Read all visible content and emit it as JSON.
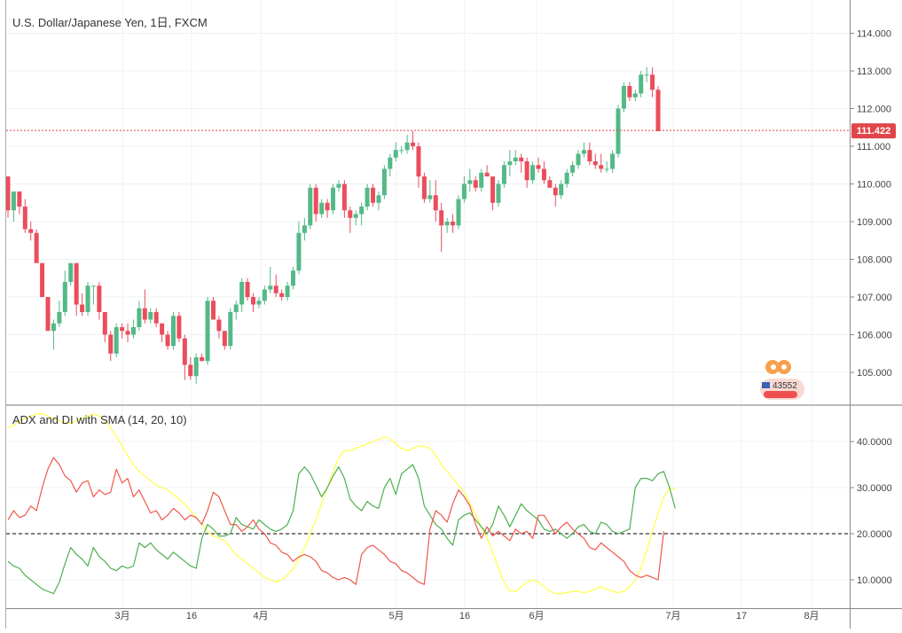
{
  "main_chart": {
    "title": "U.S. Dollar/Japanese Yen, 1日, FXCM",
    "y_ticks": [
      "114.000",
      "113.000",
      "112.000",
      "111.000",
      "110.000",
      "109.000",
      "108.000",
      "107.000",
      "106.000",
      "105.000"
    ],
    "current_price": "111.422",
    "badge_text": "43552",
    "colors": {
      "up": "#53b987",
      "down": "#eb4d5c",
      "price_line": "#e0454a",
      "badge_bg": "#ef4f4f"
    }
  },
  "indicator": {
    "title": "ADX and DI with SMA (14, 20, 10)",
    "y_ticks": [
      "40.0000",
      "30.0000",
      "20.0000",
      "10.0000"
    ],
    "threshold": 20,
    "colors": {
      "adx_sma": "#ffff44",
      "di_plus": "#4caf50",
      "di_minus": "#f0594a",
      "threshold": "#000000"
    }
  },
  "x_ticks": [
    "3月",
    "16",
    "4月",
    "5月",
    "16",
    "6月",
    "7月",
    "17",
    "8月"
  ],
  "chart_data": [
    {
      "type": "candlestick",
      "title": "U.S. Dollar/Japanese Yen, 1日, FXCM",
      "ylim": [
        104.4,
        114.6
      ],
      "candles": [
        [
          110.2,
          110.2,
          109.1,
          109.3
        ],
        [
          109.3,
          109.8,
          109.0,
          109.8
        ],
        [
          109.8,
          109.8,
          109.2,
          109.4
        ],
        [
          109.4,
          109.6,
          108.7,
          108.8
        ],
        [
          108.8,
          109.0,
          108.5,
          108.7
        ],
        [
          108.7,
          108.8,
          107.9,
          107.9
        ],
        [
          107.9,
          107.9,
          107.0,
          107.0
        ],
        [
          107.0,
          107.0,
          106.1,
          106.1
        ],
        [
          106.1,
          106.4,
          105.6,
          106.3
        ],
        [
          106.3,
          106.9,
          106.2,
          106.6
        ],
        [
          106.6,
          107.7,
          106.5,
          107.4
        ],
        [
          107.4,
          107.9,
          107.3,
          107.9
        ],
        [
          107.9,
          107.9,
          106.5,
          106.8
        ],
        [
          106.8,
          107.1,
          106.5,
          106.6
        ],
        [
          106.6,
          107.4,
          106.5,
          107.3
        ],
        [
          107.3,
          107.3,
          106.8,
          107.3
        ],
        [
          107.3,
          107.4,
          106.4,
          106.6
        ],
        [
          106.6,
          106.6,
          105.8,
          106.0
        ],
        [
          106.0,
          106.1,
          105.3,
          105.5
        ],
        [
          105.5,
          106.3,
          105.4,
          106.2
        ],
        [
          106.2,
          106.3,
          105.9,
          106.1
        ],
        [
          106.1,
          106.3,
          105.8,
          106.0
        ],
        [
          106.0,
          106.4,
          105.9,
          106.2
        ],
        [
          106.2,
          106.9,
          106.1,
          106.7
        ],
        [
          106.7,
          107.2,
          106.3,
          106.4
        ],
        [
          106.4,
          106.7,
          106.3,
          106.6
        ],
        [
          106.6,
          106.7,
          106.2,
          106.3
        ],
        [
          106.3,
          106.3,
          105.8,
          106.0
        ],
        [
          106.0,
          106.1,
          105.6,
          105.7
        ],
        [
          105.7,
          106.6,
          105.6,
          106.5
        ],
        [
          106.5,
          106.6,
          105.8,
          105.9
        ],
        [
          105.9,
          106.0,
          104.8,
          105.2
        ],
        [
          105.2,
          105.4,
          104.8,
          104.9
        ],
        [
          104.9,
          105.5,
          104.7,
          105.4
        ],
        [
          105.4,
          105.5,
          105.3,
          105.3
        ],
        [
          105.3,
          107.0,
          105.2,
          106.9
        ],
        [
          106.9,
          107.0,
          106.4,
          106.4
        ],
        [
          106.4,
          106.5,
          105.9,
          106.1
        ],
        [
          106.1,
          106.1,
          105.6,
          105.7
        ],
        [
          105.7,
          106.7,
          105.6,
          106.6
        ],
        [
          106.6,
          106.9,
          106.4,
          106.8
        ],
        [
          106.8,
          107.5,
          106.6,
          107.4
        ],
        [
          107.4,
          107.5,
          106.9,
          107.0
        ],
        [
          107.0,
          107.1,
          106.6,
          106.8
        ],
        [
          106.8,
          107.0,
          106.7,
          106.9
        ],
        [
          106.9,
          107.3,
          106.8,
          107.2
        ],
        [
          107.2,
          107.8,
          107.1,
          107.3
        ],
        [
          107.3,
          107.6,
          107.0,
          107.1
        ],
        [
          107.1,
          107.2,
          106.9,
          107.0
        ],
        [
          107.0,
          107.4,
          106.9,
          107.3
        ],
        [
          107.3,
          107.8,
          107.2,
          107.7
        ],
        [
          107.7,
          109.0,
          107.6,
          108.7
        ],
        [
          108.7,
          109.1,
          108.5,
          108.9
        ],
        [
          108.9,
          110.0,
          108.8,
          109.9
        ],
        [
          109.9,
          110.0,
          109.0,
          109.2
        ],
        [
          109.2,
          109.6,
          109.1,
          109.5
        ],
        [
          109.5,
          109.6,
          109.1,
          109.3
        ],
        [
          109.3,
          110.0,
          109.2,
          109.9
        ],
        [
          109.9,
          110.1,
          109.8,
          110.0
        ],
        [
          110.0,
          110.1,
          109.1,
          109.3
        ],
        [
          109.3,
          109.4,
          108.7,
          109.1
        ],
        [
          109.1,
          109.3,
          108.9,
          109.2
        ],
        [
          109.2,
          109.5,
          108.9,
          109.4
        ],
        [
          109.4,
          110.0,
          109.3,
          109.9
        ],
        [
          109.9,
          110.0,
          109.4,
          109.5
        ],
        [
          109.5,
          109.8,
          109.3,
          109.7
        ],
        [
          109.7,
          110.5,
          109.6,
          110.4
        ],
        [
          110.4,
          110.8,
          110.2,
          110.7
        ],
        [
          110.7,
          111.1,
          110.6,
          110.9
        ],
        [
          110.9,
          111.0,
          110.8,
          110.9
        ],
        [
          110.9,
          111.3,
          110.8,
          111.1
        ],
        [
          111.1,
          111.4,
          110.9,
          111.0
        ],
        [
          111.0,
          111.1,
          109.9,
          110.2
        ],
        [
          110.2,
          110.3,
          109.5,
          109.6
        ],
        [
          109.6,
          110.1,
          109.5,
          109.7
        ],
        [
          109.7,
          110.1,
          109.0,
          109.3
        ],
        [
          109.3,
          109.5,
          108.2,
          108.9
        ],
        [
          108.9,
          109.1,
          108.7,
          109.0
        ],
        [
          109.0,
          109.2,
          108.7,
          108.9
        ],
        [
          108.9,
          109.7,
          108.8,
          109.6
        ],
        [
          109.6,
          110.2,
          109.5,
          110.0
        ],
        [
          110.0,
          110.4,
          109.8,
          110.1
        ],
        [
          110.1,
          110.2,
          109.8,
          109.9
        ],
        [
          109.9,
          110.4,
          109.8,
          110.3
        ],
        [
          110.3,
          110.5,
          110.2,
          110.2
        ],
        [
          110.2,
          110.2,
          109.3,
          109.5
        ],
        [
          109.5,
          110.1,
          109.4,
          110.0
        ],
        [
          110.0,
          110.6,
          109.9,
          110.5
        ],
        [
          110.5,
          110.9,
          110.2,
          110.6
        ],
        [
          110.6,
          110.9,
          110.5,
          110.7
        ],
        [
          110.7,
          110.8,
          110.3,
          110.6
        ],
        [
          110.6,
          110.7,
          109.9,
          110.1
        ],
        [
          110.1,
          110.6,
          110.0,
          110.5
        ],
        [
          110.5,
          110.7,
          110.3,
          110.4
        ],
        [
          110.4,
          110.6,
          110.0,
          110.1
        ],
        [
          110.1,
          110.2,
          109.9,
          109.9
        ],
        [
          109.9,
          110.0,
          109.4,
          109.7
        ],
        [
          109.7,
          110.1,
          109.6,
          110.0
        ],
        [
          110.0,
          110.4,
          109.9,
          110.3
        ],
        [
          110.3,
          110.6,
          110.2,
          110.5
        ],
        [
          110.5,
          110.9,
          110.4,
          110.8
        ],
        [
          110.8,
          111.1,
          110.7,
          110.9
        ],
        [
          110.9,
          111.1,
          110.5,
          110.6
        ],
        [
          110.6,
          110.8,
          110.4,
          110.5
        ],
        [
          110.5,
          110.8,
          110.3,
          110.4
        ],
        [
          110.4,
          110.6,
          110.3,
          110.4
        ],
        [
          110.4,
          110.9,
          110.3,
          110.8
        ],
        [
          110.8,
          112.1,
          110.7,
          112.0
        ],
        [
          112.0,
          112.7,
          111.9,
          112.6
        ],
        [
          112.6,
          112.7,
          112.2,
          112.3
        ],
        [
          112.3,
          112.5,
          112.2,
          112.4
        ],
        [
          112.4,
          113.0,
          112.3,
          112.9
        ],
        [
          112.9,
          113.1,
          112.7,
          112.9
        ],
        [
          112.9,
          113.1,
          112.3,
          112.5
        ],
        [
          112.5,
          112.6,
          111.4,
          111.4
        ]
      ]
    },
    {
      "type": "line",
      "title": "ADX and DI with SMA (14, 20, 10)",
      "ylim": [
        3.0,
        47.0
      ],
      "series": [
        {
          "values": [
            43.0,
            43.5,
            44.5,
            45.0,
            45.5,
            46.0,
            46.0,
            45.5,
            45.0,
            44.5,
            44.0,
            44.0,
            44.5,
            45.0,
            45.5,
            46.0,
            45.5,
            44.5,
            43.0,
            41.0,
            39.0,
            37.0,
            35.0,
            33.5,
            32.5,
            31.5,
            30.5,
            30.0,
            29.5,
            28.5,
            27.5,
            26.5,
            25.0,
            23.5,
            22.0,
            20.5,
            19.5,
            19.0,
            18.5,
            17.0,
            15.5,
            14.5,
            13.5,
            12.5,
            11.5,
            10.5,
            10.0,
            9.5,
            10.0,
            11.0,
            12.5,
            14.5,
            17.0,
            20.0,
            23.0,
            26.5,
            30.0,
            33.5,
            36.5,
            38.0,
            38.0,
            38.5,
            39.0,
            39.5,
            40.0,
            40.5,
            41.0,
            40.5,
            39.5,
            38.5,
            38.0,
            38.5,
            39.0,
            39.0,
            38.5,
            37.0,
            35.0,
            33.5,
            32.0,
            30.5,
            29.0,
            26.5,
            24.0,
            21.5,
            19.0,
            16.0,
            12.5,
            9.5,
            7.5,
            7.5,
            8.5,
            9.5,
            10.0,
            9.5,
            8.5,
            7.5,
            7.0,
            7.0,
            7.2,
            7.5,
            7.5,
            7.2,
            7.5,
            8.0,
            8.5,
            8.0,
            7.5,
            7.2,
            7.5,
            8.5,
            10.0,
            12.5,
            16.5,
            20.5,
            24.5,
            28.0,
            30.0,
            29.5
          ]
        },
        {
          "values": [
            14.0,
            13.0,
            12.5,
            11.0,
            10.0,
            9.0,
            8.0,
            7.5,
            7.0,
            9.5,
            13.5,
            17.0,
            15.5,
            14.5,
            13.0,
            17.0,
            15.0,
            14.0,
            12.5,
            12.0,
            13.0,
            12.5,
            13.0,
            18.0,
            17.0,
            18.0,
            16.5,
            15.5,
            14.5,
            16.0,
            15.0,
            14.0,
            13.0,
            12.5,
            19.0,
            22.0,
            21.0,
            19.5,
            19.5,
            20.0,
            23.5,
            22.0,
            21.5,
            21.0,
            23.0,
            22.0,
            21.0,
            20.5,
            21.0,
            22.0,
            25.0,
            33.0,
            34.5,
            33.0,
            30.5,
            28.0,
            30.0,
            32.5,
            34.5,
            32.0,
            27.5,
            26.0,
            25.0,
            27.0,
            26.0,
            25.5,
            30.0,
            32.0,
            28.5,
            33.0,
            34.0,
            35.0,
            32.0,
            26.0,
            24.0,
            22.0,
            21.0,
            19.0,
            17.5,
            23.0,
            24.0,
            24.5,
            23.0,
            21.5,
            20.0,
            22.0,
            26.0,
            24.0,
            21.5,
            24.0,
            26.5,
            25.0,
            24.0,
            23.0,
            21.0,
            20.5,
            21.0,
            20.0,
            19.0,
            20.0,
            21.5,
            22.0,
            20.5,
            20.0,
            22.5,
            22.0,
            20.5,
            20.0,
            20.5,
            21.0,
            30.0,
            32.0,
            32.0,
            31.5,
            33.0,
            33.5,
            30.0,
            25.5
          ]
        },
        {
          "values": [
            23.0,
            25.0,
            23.5,
            24.0,
            26.0,
            25.0,
            30.0,
            34.0,
            36.5,
            35.0,
            32.5,
            31.5,
            29.0,
            31.0,
            31.5,
            28.0,
            29.5,
            28.5,
            29.0,
            34.0,
            31.0,
            32.0,
            28.0,
            29.5,
            27.0,
            24.5,
            25.0,
            23.0,
            24.0,
            25.5,
            24.5,
            23.0,
            24.0,
            23.5,
            22.0,
            25.0,
            29.0,
            28.0,
            25.0,
            22.0,
            22.0,
            20.5,
            21.5,
            23.0,
            21.0,
            20.0,
            18.0,
            17.5,
            16.0,
            15.5,
            14.0,
            15.0,
            15.5,
            15.0,
            14.0,
            12.0,
            11.5,
            10.5,
            10.0,
            10.5,
            10.0,
            9.0,
            15.5,
            17.0,
            17.5,
            16.5,
            15.5,
            14.0,
            13.5,
            12.0,
            11.5,
            10.5,
            9.5,
            9.0,
            21.0,
            25.0,
            24.0,
            22.5,
            26.5,
            29.5,
            28.0,
            26.0,
            22.0,
            19.0,
            21.5,
            19.5,
            20.5,
            19.5,
            18.5,
            21.0,
            20.0,
            20.5,
            19.0,
            24.0,
            24.0,
            22.0,
            20.0,
            21.5,
            22.5,
            21.0,
            20.0,
            19.0,
            17.0,
            16.5,
            18.0,
            17.0,
            16.0,
            15.0,
            14.0,
            12.0,
            11.0,
            10.5,
            11.0,
            10.5,
            10.0,
            20.5
          ]
        }
      ]
    }
  ]
}
